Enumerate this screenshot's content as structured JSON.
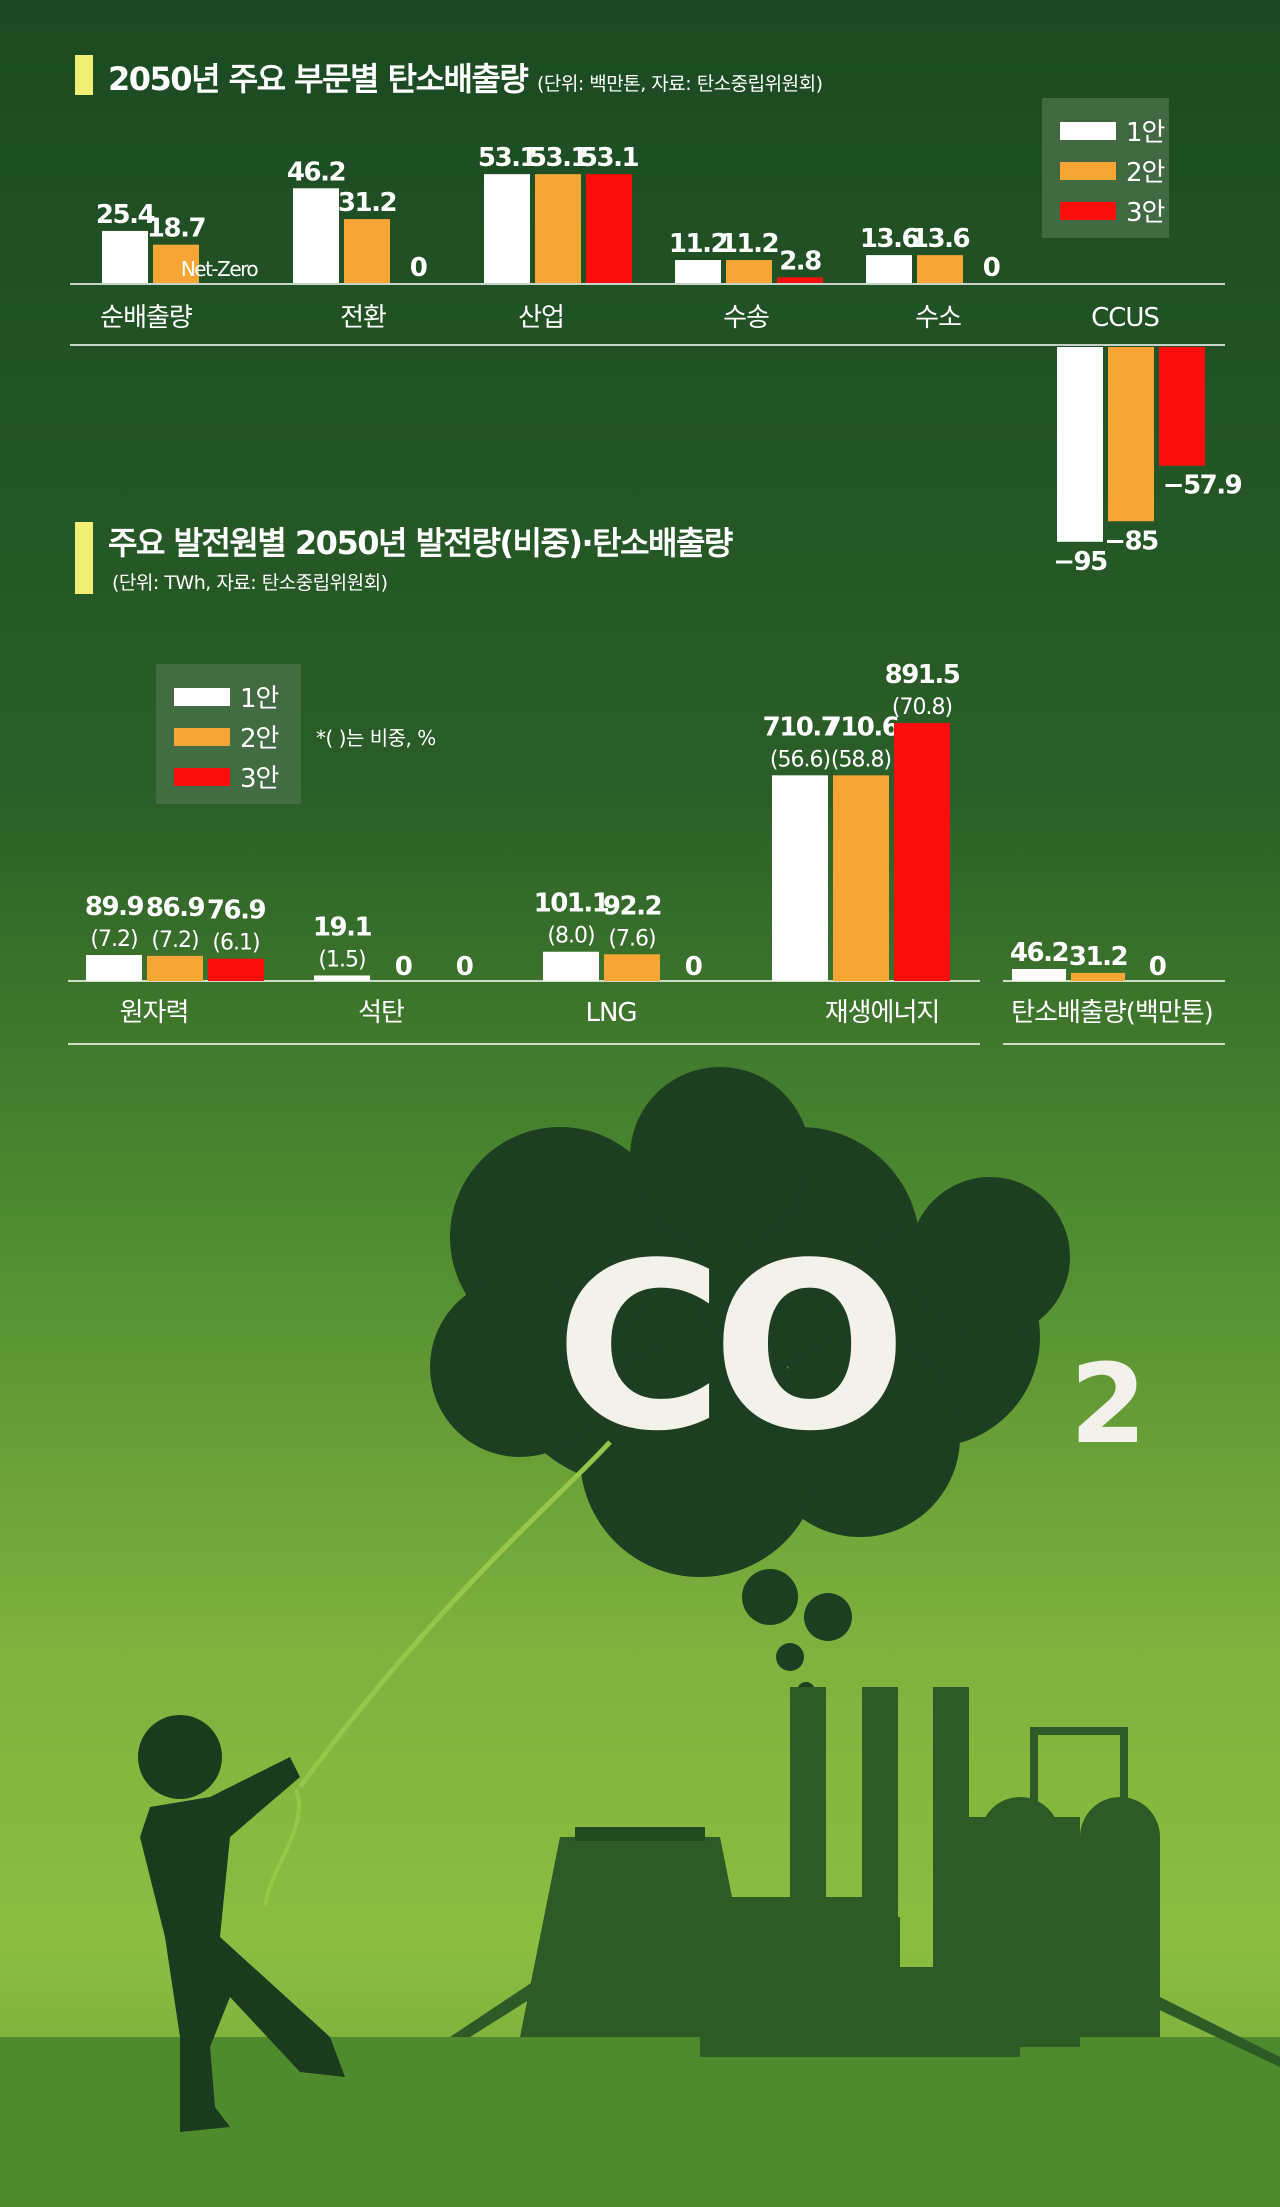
{
  "colors": {
    "plan1": "#ffffff",
    "plan2": "#f7a535",
    "plan3": "#f90e0e",
    "accent_bar": "#f0ee74"
  },
  "chart1": {
    "title": "2050년 주요 부문별 탄소배출량",
    "unit_note": "(단위: 백만톤, 자료: 탄소중립위원회)"
  },
  "chart2": {
    "title": "주요 발전원별 2050년 발전량(비중)·탄소배출량",
    "unit_note": "(단위: TWh, 자료: 탄소중립위원회)",
    "note": "*(   )는 비중, %"
  },
  "legend": [
    "1안",
    "2안",
    "3안"
  ],
  "art": {
    "co2_main": "CO",
    "co2_sub": "2"
  },
  "chart_data": [
    {
      "type": "bar",
      "title": "2050년 주요 부문별 탄소배출량",
      "unit": "백만톤",
      "categories": [
        "순배출량",
        "전환",
        "산업",
        "수송",
        "수소",
        "CCUS"
      ],
      "series": [
        {
          "name": "1안",
          "values": [
            25.4,
            46.2,
            53.1,
            11.2,
            13.6,
            -95
          ]
        },
        {
          "name": "2안",
          "values": [
            18.7,
            31.2,
            53.1,
            11.2,
            13.6,
            -85
          ]
        },
        {
          "name": "3안",
          "values": [
            0,
            0,
            53.1,
            2.8,
            0,
            -57.9
          ]
        }
      ],
      "value_labels": [
        [
          "25.4",
          "46.2",
          "53.1",
          "11.2",
          "13.6",
          "−95"
        ],
        [
          "18.7",
          "31.2",
          "53.1",
          "11.2",
          "13.6",
          "−85"
        ],
        [
          "Net-Zero",
          "0",
          "53.1",
          "2.8",
          "0",
          "−57.9"
        ]
      ],
      "legend_position": "top-right"
    },
    {
      "type": "bar",
      "title": "주요 발전원별 2050년 발전량(비중)·탄소배출량",
      "unit": "TWh",
      "categories": [
        "원자력",
        "석탄",
        "LNG",
        "재생에너지",
        "탄소배출량(백만톤)"
      ],
      "series": [
        {
          "name": "1안",
          "values": [
            89.9,
            19.1,
            101.1,
            710.7,
            46.2
          ]
        },
        {
          "name": "2안",
          "values": [
            86.9,
            0,
            92.2,
            710.6,
            31.2
          ]
        },
        {
          "name": "3안",
          "values": [
            76.9,
            0,
            0,
            891.5,
            0
          ]
        }
      ],
      "value_labels": [
        [
          "89.9",
          "19.1",
          "101.1",
          "710.7",
          "46.2"
        ],
        [
          "86.9",
          "0",
          "92.2",
          "710.6",
          "31.2"
        ],
        [
          "76.9",
          "0",
          "0",
          "891.5",
          "0"
        ]
      ],
      "share_labels": [
        [
          "(7.2)",
          "(1.5)",
          "(8.0)",
          "(56.6)",
          ""
        ],
        [
          "(7.2)",
          "",
          "(7.6)",
          "(58.8)",
          ""
        ],
        [
          "(6.1)",
          "",
          "",
          "(70.8)",
          ""
        ]
      ],
      "legend_position": "top-left"
    }
  ]
}
